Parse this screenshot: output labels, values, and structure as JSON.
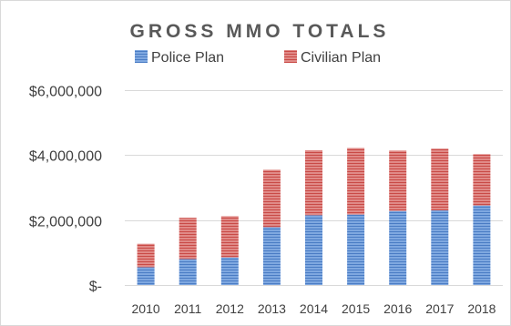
{
  "chart_data": {
    "type": "bar",
    "stacked": true,
    "title": "GROSS MMO TOTALS",
    "categories": [
      "2010",
      "2011",
      "2012",
      "2013",
      "2014",
      "2015",
      "2016",
      "2017",
      "2018"
    ],
    "series": [
      {
        "name": "Police Plan",
        "color": "#5b8fd4",
        "values": [
          550000,
          800000,
          850000,
          1780000,
          2150000,
          2170000,
          2280000,
          2300000,
          2450000
        ]
      },
      {
        "name": "Civilian Plan",
        "color": "#d9534f",
        "values": [
          720000,
          1270000,
          1270000,
          1770000,
          2000000,
          2050000,
          1860000,
          1900000,
          1580000
        ]
      }
    ],
    "ylim": [
      0,
      6000000
    ],
    "yticks": [
      0,
      2000000,
      4000000,
      6000000
    ],
    "ytick_labels": [
      "$-",
      "$2,000,000",
      "$4,000,000",
      "$6,000,000"
    ],
    "legend": "top",
    "grid": true
  }
}
